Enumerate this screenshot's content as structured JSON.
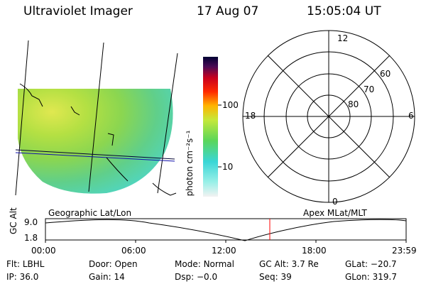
{
  "header": {
    "instrument": "Ultraviolet Imager",
    "date": "17 Aug 07",
    "time": "15:05:04 UT"
  },
  "colorbar": {
    "label": "photon cm⁻²s⁻¹",
    "ticks": [
      "100",
      "10"
    ]
  },
  "polar": {
    "mlt_labels": [
      "12",
      "18",
      "6",
      "0"
    ],
    "lat_labels": [
      "60",
      "70",
      "80"
    ]
  },
  "orbit": {
    "left_caption": "Geographic Lat/Lon",
    "right_caption": "Apex MLat/MLT",
    "axis_label": "GC Alt",
    "y_ticks": [
      "9.0",
      "1.8"
    ],
    "x_ticks": [
      "00:00",
      "06:00",
      "12:00",
      "18:00",
      "23:59"
    ],
    "current_marker_color": "#ff0000"
  },
  "status": {
    "row1": [
      {
        "label": "Flt:",
        "value": "LBHL"
      },
      {
        "label": "Door:",
        "value": "Open"
      },
      {
        "label": "Mode:",
        "value": "Normal"
      },
      {
        "label": "GC Alt:",
        "value": "3.7 Re"
      },
      {
        "label": "GLat:",
        "value": "−20.7"
      }
    ],
    "row2": [
      {
        "label": "IP:",
        "value": "36.0"
      },
      {
        "label": "Gain:",
        "value": "14"
      },
      {
        "label": "Dsp:",
        "value": "−0.0"
      },
      {
        "label": "Seq:",
        "value": "39"
      },
      {
        "label": "GLon:",
        "value": "319.7"
      }
    ]
  }
}
